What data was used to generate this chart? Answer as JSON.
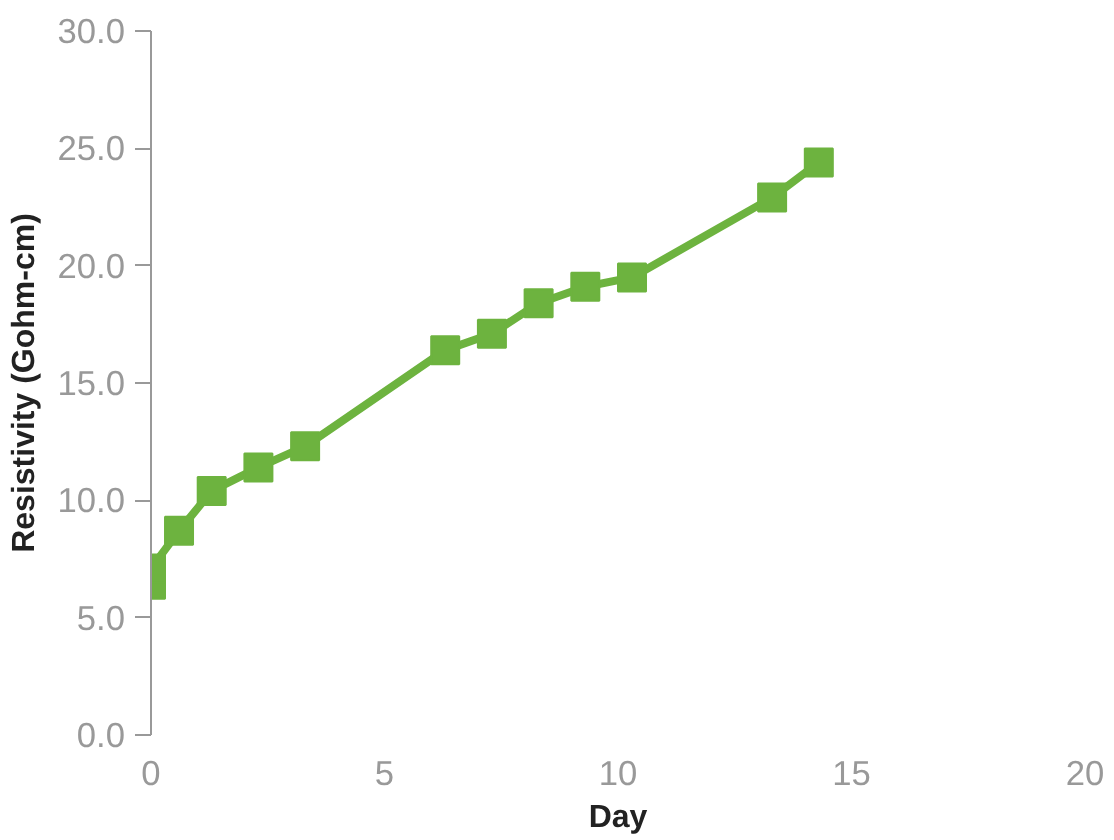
{
  "chart_data": {
    "type": "line",
    "xlabel": "Day",
    "ylabel": "Resistivity (Gohm-cm)",
    "x": [
      0,
      0,
      0.6,
      1.3,
      2.3,
      3.3,
      6.3,
      7.3,
      8.3,
      9.3,
      10.3,
      13.3,
      14.3
    ],
    "series": [
      {
        "color": "#6db33f",
        "values": [
          6.4,
          7.1,
          8.7,
          10.4,
          11.4,
          12.3,
          16.4,
          17.1,
          18.4,
          19.1,
          19.5,
          22.9,
          24.4
        ]
      }
    ],
    "xlim": [
      0,
      20
    ],
    "xticks": [
      0,
      5,
      10,
      15,
      20
    ],
    "ylim": [
      0,
      30
    ],
    "yticks": [
      {
        "value": 0,
        "label": "0.0"
      },
      {
        "value": 5,
        "label": "5.0"
      },
      {
        "value": 10,
        "label": "10.0"
      },
      {
        "value": 15,
        "label": "15.0"
      },
      {
        "value": 20,
        "label": "20.0"
      },
      {
        "value": 25,
        "label": "25.0"
      },
      {
        "value": 30,
        "label": "30.0"
      }
    ],
    "marker": "square",
    "line_style": "solid",
    "grid": false
  }
}
